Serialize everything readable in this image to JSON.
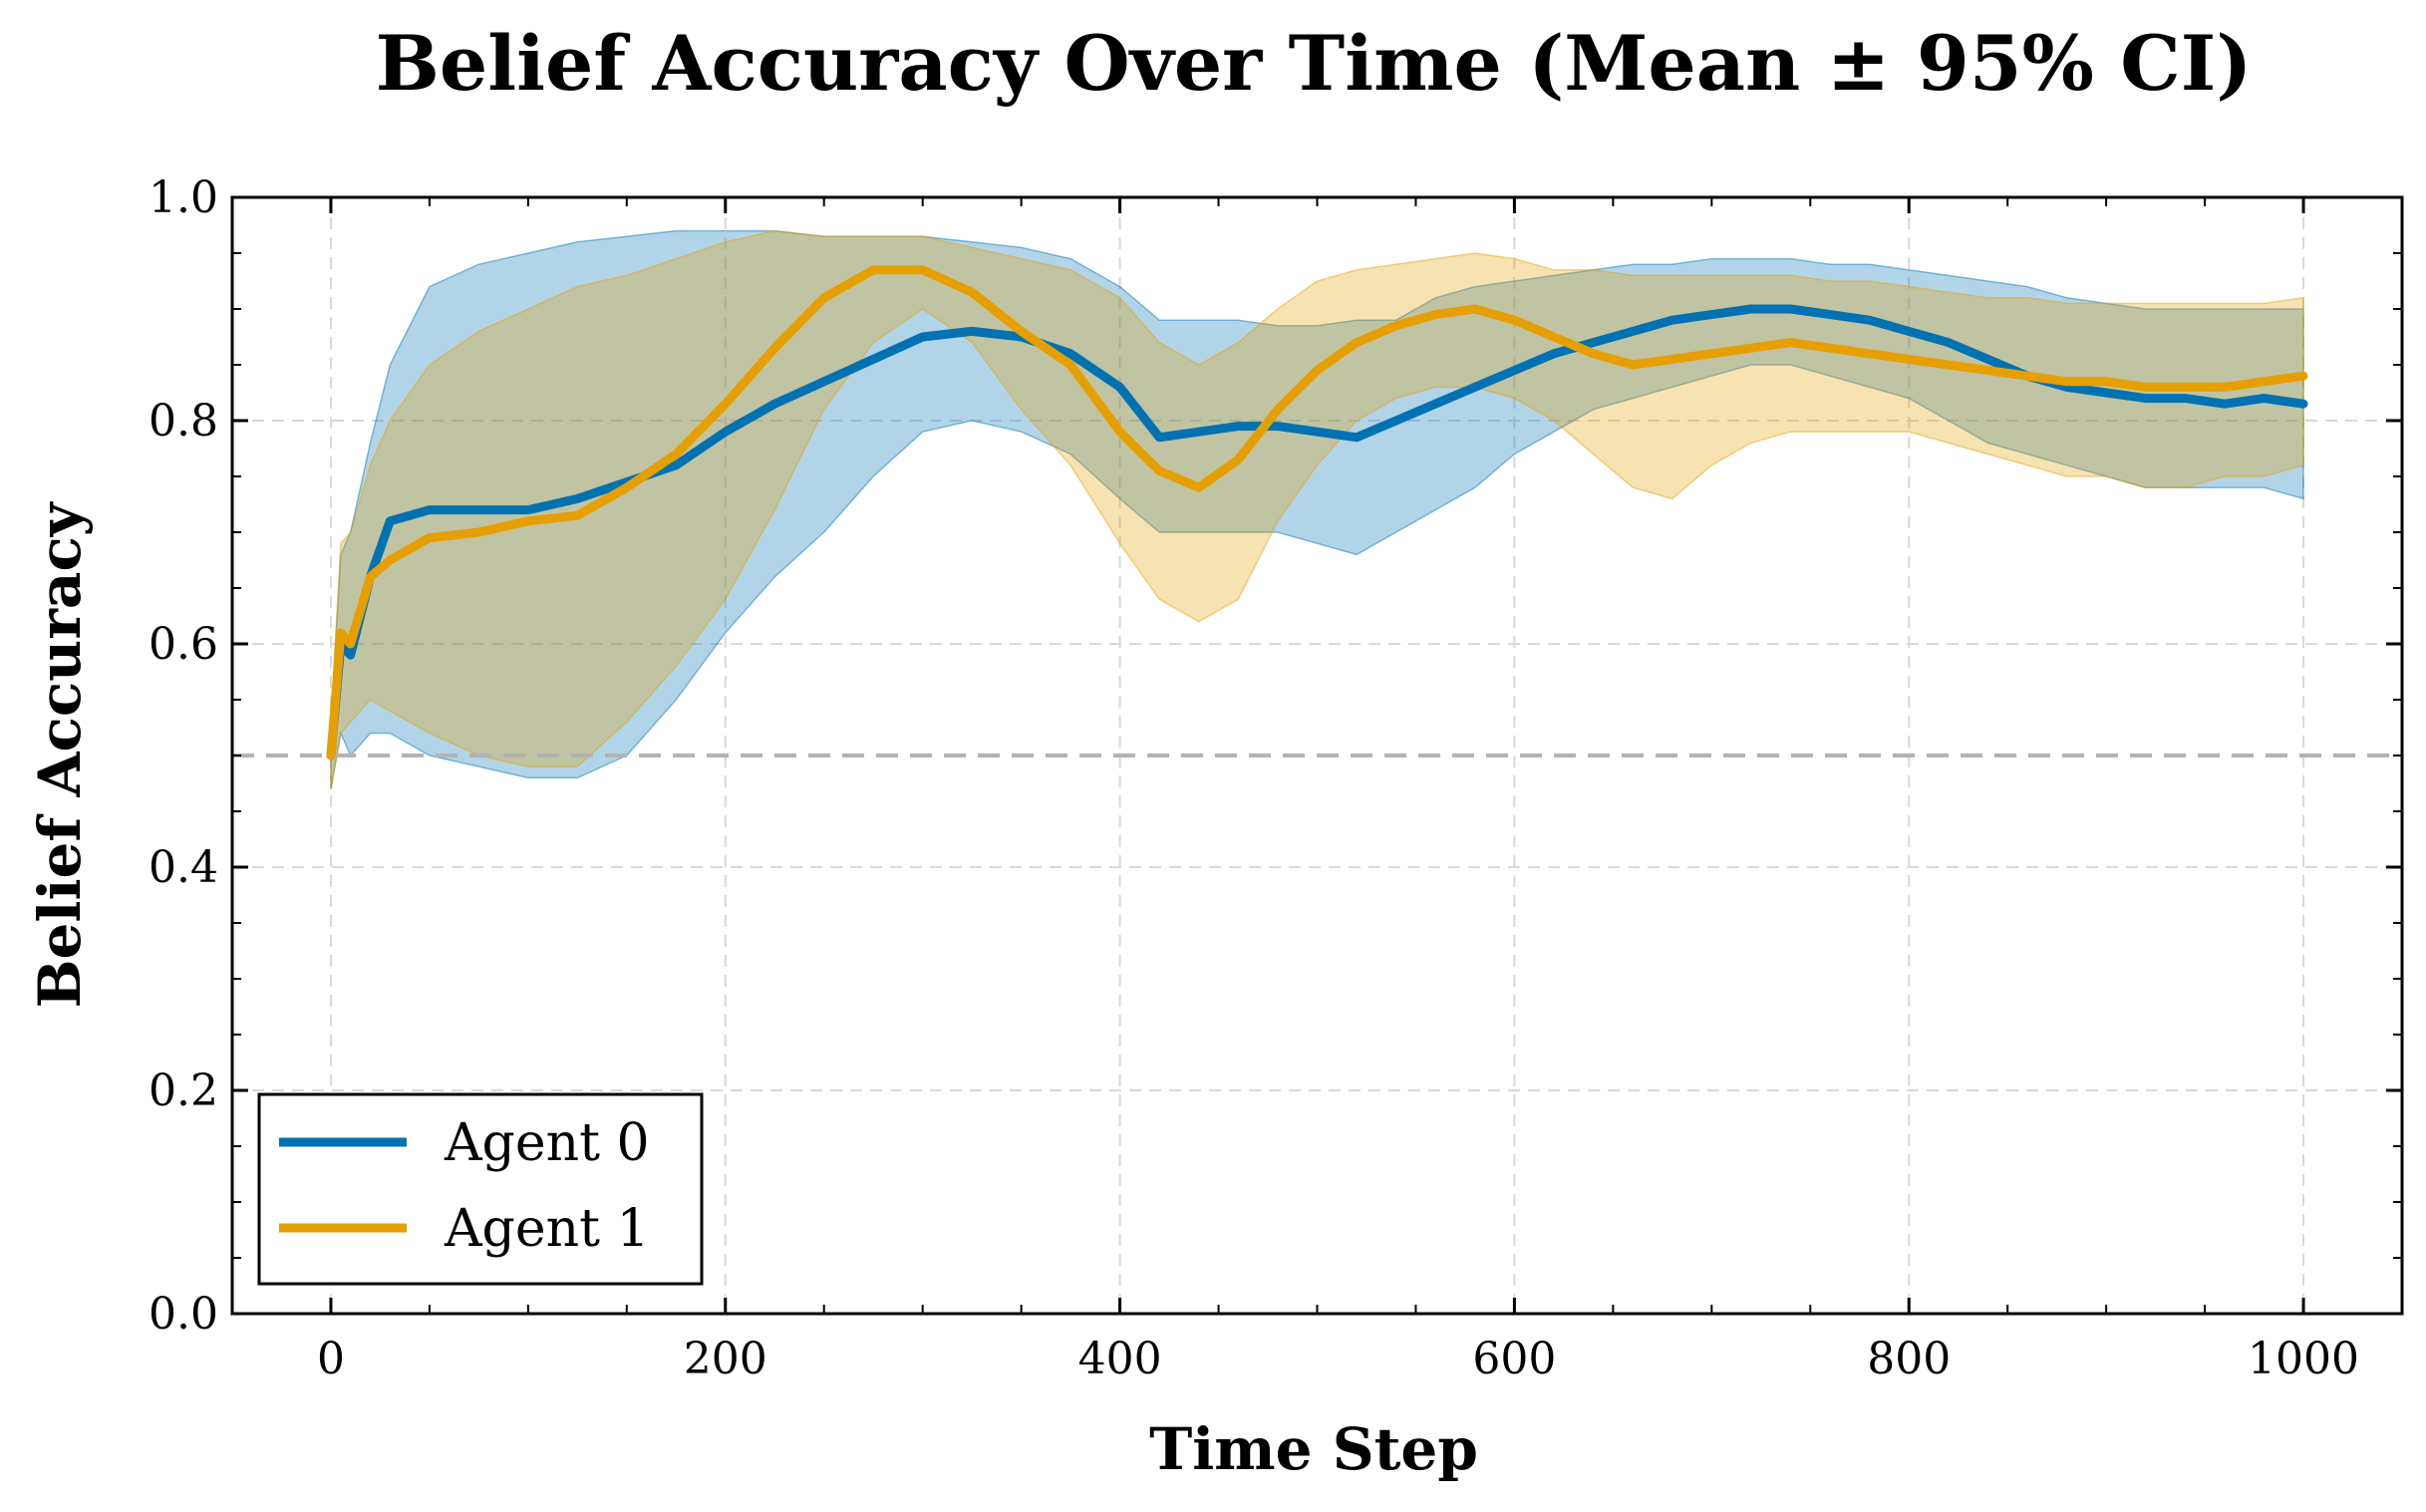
{
  "chart_data": {
    "type": "line",
    "title": "Belief Accuracy Over Time (Mean ± 95% CI)",
    "xlabel": "Time Step",
    "ylabel": "Belief Accuracy",
    "xlim": [
      -50,
      1050
    ],
    "ylim": [
      0.0,
      1.0
    ],
    "xticks": [
      "0",
      "200",
      "400",
      "600",
      "800",
      "1000"
    ],
    "yticks": [
      "0.0",
      "0.2",
      "0.4",
      "0.6",
      "0.8",
      "1.0"
    ],
    "grid": true,
    "legend_position": "lower-left",
    "reference_line": {
      "y": 0.5,
      "style": "dashed",
      "color": "#b3b3b3"
    },
    "series": [
      {
        "name": "Agent 0",
        "color": "#0072b2",
        "x": [
          0,
          5,
          10,
          20,
          30,
          50,
          75,
          100,
          125,
          150,
          175,
          200,
          225,
          250,
          275,
          300,
          325,
          350,
          375,
          400,
          420,
          440,
          460,
          480,
          500,
          520,
          540,
          560,
          580,
          600,
          620,
          640,
          660,
          680,
          700,
          720,
          740,
          760,
          780,
          800,
          820,
          840,
          860,
          880,
          900,
          920,
          940,
          960,
          980,
          1000
        ],
        "mean": [
          0.5,
          0.6,
          0.59,
          0.66,
          0.71,
          0.72,
          0.72,
          0.72,
          0.73,
          0.745,
          0.76,
          0.79,
          0.815,
          0.835,
          0.855,
          0.875,
          0.88,
          0.875,
          0.86,
          0.83,
          0.785,
          0.79,
          0.795,
          0.795,
          0.79,
          0.785,
          0.8,
          0.815,
          0.83,
          0.845,
          0.86,
          0.87,
          0.88,
          0.89,
          0.895,
          0.9,
          0.9,
          0.895,
          0.89,
          0.88,
          0.87,
          0.855,
          0.84,
          0.83,
          0.825,
          0.82,
          0.82,
          0.815,
          0.82,
          0.815
        ],
        "lower": [
          0.47,
          0.52,
          0.5,
          0.52,
          0.52,
          0.5,
          0.49,
          0.48,
          0.48,
          0.5,
          0.55,
          0.61,
          0.66,
          0.7,
          0.75,
          0.79,
          0.8,
          0.79,
          0.77,
          0.73,
          0.7,
          0.7,
          0.7,
          0.7,
          0.69,
          0.68,
          0.7,
          0.72,
          0.74,
          0.77,
          0.79,
          0.81,
          0.82,
          0.83,
          0.84,
          0.85,
          0.85,
          0.84,
          0.83,
          0.82,
          0.8,
          0.78,
          0.77,
          0.76,
          0.75,
          0.74,
          0.74,
          0.74,
          0.74,
          0.73
        ],
        "upper": [
          0.53,
          0.68,
          0.7,
          0.78,
          0.85,
          0.92,
          0.94,
          0.95,
          0.96,
          0.965,
          0.97,
          0.97,
          0.97,
          0.965,
          0.965,
          0.965,
          0.96,
          0.955,
          0.945,
          0.92,
          0.89,
          0.89,
          0.89,
          0.885,
          0.885,
          0.89,
          0.89,
          0.91,
          0.92,
          0.925,
          0.93,
          0.935,
          0.94,
          0.94,
          0.945,
          0.945,
          0.945,
          0.94,
          0.94,
          0.935,
          0.93,
          0.925,
          0.92,
          0.91,
          0.905,
          0.9,
          0.9,
          0.9,
          0.9,
          0.9
        ]
      },
      {
        "name": "Agent 1",
        "color": "#e69f00",
        "x": [
          0,
          5,
          10,
          20,
          30,
          50,
          75,
          100,
          125,
          150,
          175,
          200,
          225,
          250,
          275,
          300,
          325,
          350,
          375,
          400,
          420,
          440,
          460,
          480,
          500,
          520,
          540,
          560,
          580,
          600,
          620,
          640,
          660,
          680,
          700,
          720,
          740,
          760,
          780,
          800,
          820,
          840,
          860,
          880,
          900,
          920,
          940,
          960,
          980,
          1000
        ],
        "mean": [
          0.5,
          0.61,
          0.6,
          0.66,
          0.675,
          0.695,
          0.7,
          0.71,
          0.715,
          0.74,
          0.77,
          0.815,
          0.865,
          0.91,
          0.935,
          0.935,
          0.915,
          0.88,
          0.85,
          0.79,
          0.755,
          0.74,
          0.765,
          0.81,
          0.845,
          0.87,
          0.885,
          0.895,
          0.9,
          0.89,
          0.875,
          0.86,
          0.85,
          0.855,
          0.86,
          0.865,
          0.87,
          0.865,
          0.86,
          0.855,
          0.85,
          0.845,
          0.84,
          0.835,
          0.835,
          0.83,
          0.83,
          0.83,
          0.835,
          0.84
        ],
        "lower": [
          0.47,
          0.52,
          0.53,
          0.55,
          0.54,
          0.52,
          0.5,
          0.49,
          0.49,
          0.53,
          0.58,
          0.64,
          0.72,
          0.81,
          0.87,
          0.9,
          0.87,
          0.81,
          0.76,
          0.69,
          0.64,
          0.62,
          0.64,
          0.71,
          0.76,
          0.8,
          0.82,
          0.83,
          0.83,
          0.82,
          0.8,
          0.77,
          0.74,
          0.73,
          0.76,
          0.78,
          0.79,
          0.79,
          0.79,
          0.79,
          0.78,
          0.77,
          0.76,
          0.75,
          0.75,
          0.74,
          0.74,
          0.75,
          0.75,
          0.76
        ],
        "upper": [
          0.53,
          0.69,
          0.7,
          0.76,
          0.8,
          0.85,
          0.88,
          0.9,
          0.92,
          0.93,
          0.945,
          0.96,
          0.97,
          0.965,
          0.965,
          0.965,
          0.955,
          0.945,
          0.935,
          0.91,
          0.87,
          0.85,
          0.87,
          0.9,
          0.925,
          0.935,
          0.94,
          0.945,
          0.95,
          0.945,
          0.935,
          0.935,
          0.93,
          0.93,
          0.93,
          0.93,
          0.93,
          0.925,
          0.925,
          0.92,
          0.915,
          0.91,
          0.91,
          0.905,
          0.905,
          0.905,
          0.905,
          0.905,
          0.905,
          0.91
        ]
      }
    ]
  }
}
